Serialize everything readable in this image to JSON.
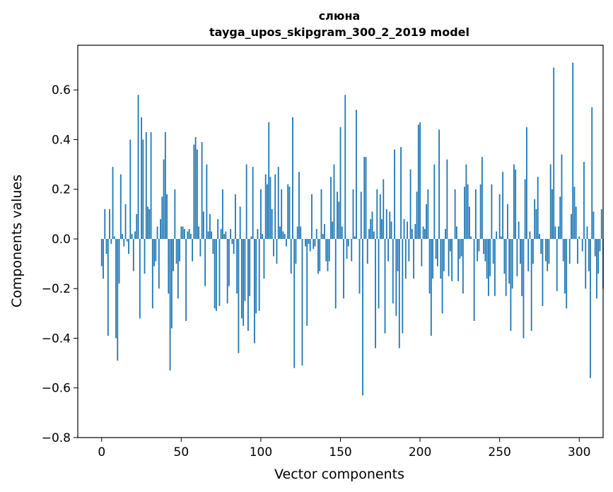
{
  "chart_data": {
    "type": "bar",
    "title": "слюна",
    "subtitle": "tayga_upos_skipgram_300_2_2019 model",
    "xlabel": "Vector components",
    "ylabel": "Components values",
    "xlim": [
      -15,
      315
    ],
    "ylim": [
      -0.8,
      0.78
    ],
    "xticks": [
      0,
      50,
      100,
      150,
      200,
      250,
      300
    ],
    "yticks": [
      -0.8,
      -0.6,
      -0.4,
      -0.2,
      0.0,
      0.2,
      0.4,
      0.6
    ],
    "ytick_labels": [
      "−0.8",
      "−0.6",
      "−0.4",
      "−0.2",
      "0.0",
      "0.2",
      "0.4",
      "0.6"
    ],
    "xtick_labels": [
      "0",
      "50",
      "100",
      "150",
      "200",
      "250",
      "300"
    ],
    "bar_color": "#1f77b4",
    "grid": false,
    "values": [
      -0.11,
      -0.16,
      0.12,
      -0.06,
      -0.39,
      0.12,
      -0.02,
      0.29,
      0.01,
      -0.4,
      -0.49,
      -0.18,
      0.26,
      0.02,
      -0.03,
      0.14,
      -0.01,
      -0.06,
      0.4,
      0.02,
      -0.13,
      0.03,
      0.1,
      0.58,
      -0.32,
      0.49,
      0.4,
      -0.14,
      0.43,
      0.13,
      0.12,
      0.43,
      -0.28,
      -0.11,
      -0.09,
      0.05,
      -0.2,
      0.08,
      0.17,
      0.32,
      0.43,
      0.18,
      -0.22,
      -0.53,
      -0.36,
      -0.13,
      0.2,
      -0.1,
      -0.24,
      -0.09,
      0.05,
      0.05,
      0.04,
      -0.33,
      0.03,
      0.04,
      0.02,
      -0.09,
      0.38,
      0.41,
      0.36,
      0.05,
      -0.07,
      0.39,
      0.11,
      -0.19,
      0.3,
      0.03,
      0.1,
      0.03,
      -0.06,
      -0.28,
      -0.29,
      0.08,
      -0.27,
      0.04,
      0.2,
      0.02,
      0.03,
      -0.26,
      -0.19,
      0.04,
      -0.02,
      -0.06,
      0.18,
      -0.22,
      -0.46,
      0.13,
      -0.32,
      -0.35,
      -0.25,
      0.3,
      -0.37,
      -0.23,
      0.01,
      0.29,
      -0.42,
      -0.3,
      0.04,
      -0.29,
      0.2,
      0.02,
      -0.16,
      0.26,
      0.22,
      0.47,
      0.25,
      0.12,
      -0.07,
      0.26,
      -0.1,
      0.29,
      0.05,
      0.2,
      0.03,
      0.02,
      -0.03,
      0.22,
      0.21,
      -0.14,
      0.49,
      -0.52,
      -0.1,
      0.05,
      0.27,
      0.05,
      -0.51,
      0.0,
      -0.03,
      -0.35,
      -0.02,
      -0.05,
      0.18,
      -0.04,
      -0.03,
      0.04,
      -0.14,
      -0.13,
      0.2,
      0.02,
      0.06,
      -0.09,
      -0.13,
      -0.09,
      0.25,
      0.07,
      0.3,
      -0.28,
      0.19,
      0.15,
      0.45,
      0.05,
      -0.24,
      0.58,
      -0.08,
      -0.03,
      0.0,
      -0.09,
      0.2,
      0.01,
      0.52,
      0.0,
      -0.22,
      0.19,
      -0.63,
      0.33,
      0.33,
      -0.1,
      0.04,
      0.08,
      0.11,
      0.03,
      -0.44,
      0.2,
      -0.28,
      0.18,
      0.08,
      0.24,
      -0.38,
      0.12,
      -0.09,
      0.11,
      0.07,
      -0.26,
      0.36,
      -0.31,
      -0.13,
      -0.44,
      0.37,
      -0.38,
      0.08,
      -0.16,
      0.07,
      -0.09,
      0.28,
      0.04,
      -0.16,
      0.06,
      0.19,
      0.46,
      0.47,
      -0.11,
      0.05,
      0.04,
      0.14,
      0.2,
      -0.22,
      -0.39,
      -0.16,
      0.3,
      -0.08,
      -0.11,
      0.44,
      -0.16,
      -0.3,
      -0.13,
      0.04,
      0.32,
      -0.15,
      -0.05,
      -0.17,
      0.0,
      0.2,
      0.05,
      -0.17,
      -0.08,
      -0.07,
      -0.22,
      0.21,
      0.3,
      0.22,
      0.13,
      0.01,
      0.0,
      -0.33,
      0.2,
      -0.09,
      -0.05,
      0.22,
      0.33,
      -0.06,
      -0.09,
      -0.16,
      -0.23,
      -0.15,
      0.22,
      -0.1,
      -0.23,
      0.03,
      0.0,
      0.18,
      0.01,
      0.27,
      -0.14,
      -0.23,
      0.14,
      -0.18,
      -0.37,
      -0.2,
      0.3,
      0.28,
      -0.15,
      0.07,
      -0.1,
      -0.23,
      -0.4,
      0.24,
      0.45,
      -0.13,
      0.03,
      -0.37,
      -0.1,
      0.16,
      0.12,
      0.25,
      0.02,
      -0.06,
      -0.27,
      0.0,
      -0.09,
      -0.13,
      -0.1,
      0.3,
      0.2,
      0.69,
      0.05,
      -0.21,
      0.05,
      0.17,
      0.34,
      -0.09,
      -0.22,
      -0.28,
      0.0,
      -0.1,
      0.1,
      0.71,
      0.21,
      0.13,
      -0.1,
      0.01,
      0.0,
      -0.05,
      0.31,
      -0.2,
      0.05,
      -0.13,
      -0.56,
      0.53,
      0.11,
      -0.07,
      -0.24,
      -0.14,
      -0.05,
      0.12,
      -0.2
    ]
  }
}
